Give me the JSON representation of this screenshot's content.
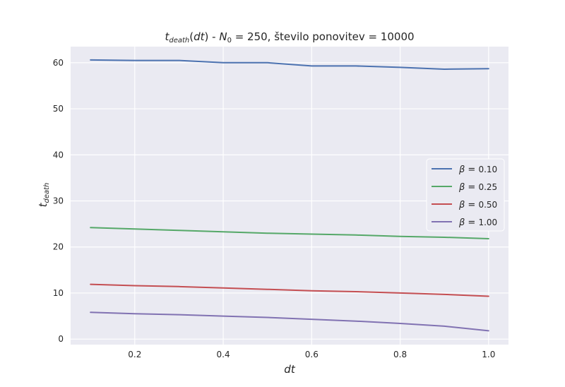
{
  "chart_data": {
    "type": "line",
    "title": {
      "t": "t",
      "t_sub": "death",
      "dt_open": "(",
      "dt": "dt",
      "dt_close": ")",
      "sep": " - ",
      "n": "N",
      "n_sub": "0",
      "rest": " =  250, število ponovitev  = 10000"
    },
    "xlabel": "dt",
    "ylabel": {
      "main": "t",
      "sub": "death"
    },
    "xlim": [
      0.055,
      1.045
    ],
    "ylim": [
      -1.2,
      63.5
    ],
    "xticks": [
      0.2,
      0.4,
      0.6,
      0.8,
      1.0
    ],
    "xtick_labels": [
      "0.2",
      "0.4",
      "0.6",
      "0.8",
      "1.0"
    ],
    "yticks": [
      0,
      10,
      20,
      30,
      40,
      50,
      60
    ],
    "ytick_labels": [
      "0",
      "10",
      "20",
      "30",
      "40",
      "50",
      "60"
    ],
    "grid": true,
    "legend_position": "center-right",
    "x": [
      0.1,
      0.2,
      0.3,
      0.4,
      0.5,
      0.6,
      0.7,
      0.8,
      0.9,
      1.0
    ],
    "series": [
      {
        "name": "β =  0.10",
        "greek": "β",
        "eq": " = ",
        "val": "0.10",
        "color": "#4c72b0",
        "values": [
          60.6,
          60.5,
          60.5,
          60.0,
          60.0,
          59.3,
          59.3,
          59.0,
          58.6,
          58.7
        ]
      },
      {
        "name": "β =  0.25",
        "greek": "β",
        "eq": " = ",
        "val": "0.25",
        "color": "#55a868",
        "values": [
          24.2,
          23.9,
          23.6,
          23.3,
          23.0,
          22.8,
          22.6,
          22.3,
          22.1,
          21.8
        ]
      },
      {
        "name": "β =  0.50",
        "greek": "β",
        "eq": " = ",
        "val": "0.50",
        "color": "#c44e52",
        "values": [
          11.9,
          11.6,
          11.4,
          11.1,
          10.8,
          10.5,
          10.3,
          10.0,
          9.7,
          9.3
        ]
      },
      {
        "name": "β =  1.00",
        "greek": "β",
        "eq": " = ",
        "val": "1.00",
        "color": "#8172b2",
        "values": [
          5.8,
          5.5,
          5.3,
          5.0,
          4.7,
          4.3,
          3.9,
          3.4,
          2.8,
          1.8
        ]
      }
    ]
  }
}
